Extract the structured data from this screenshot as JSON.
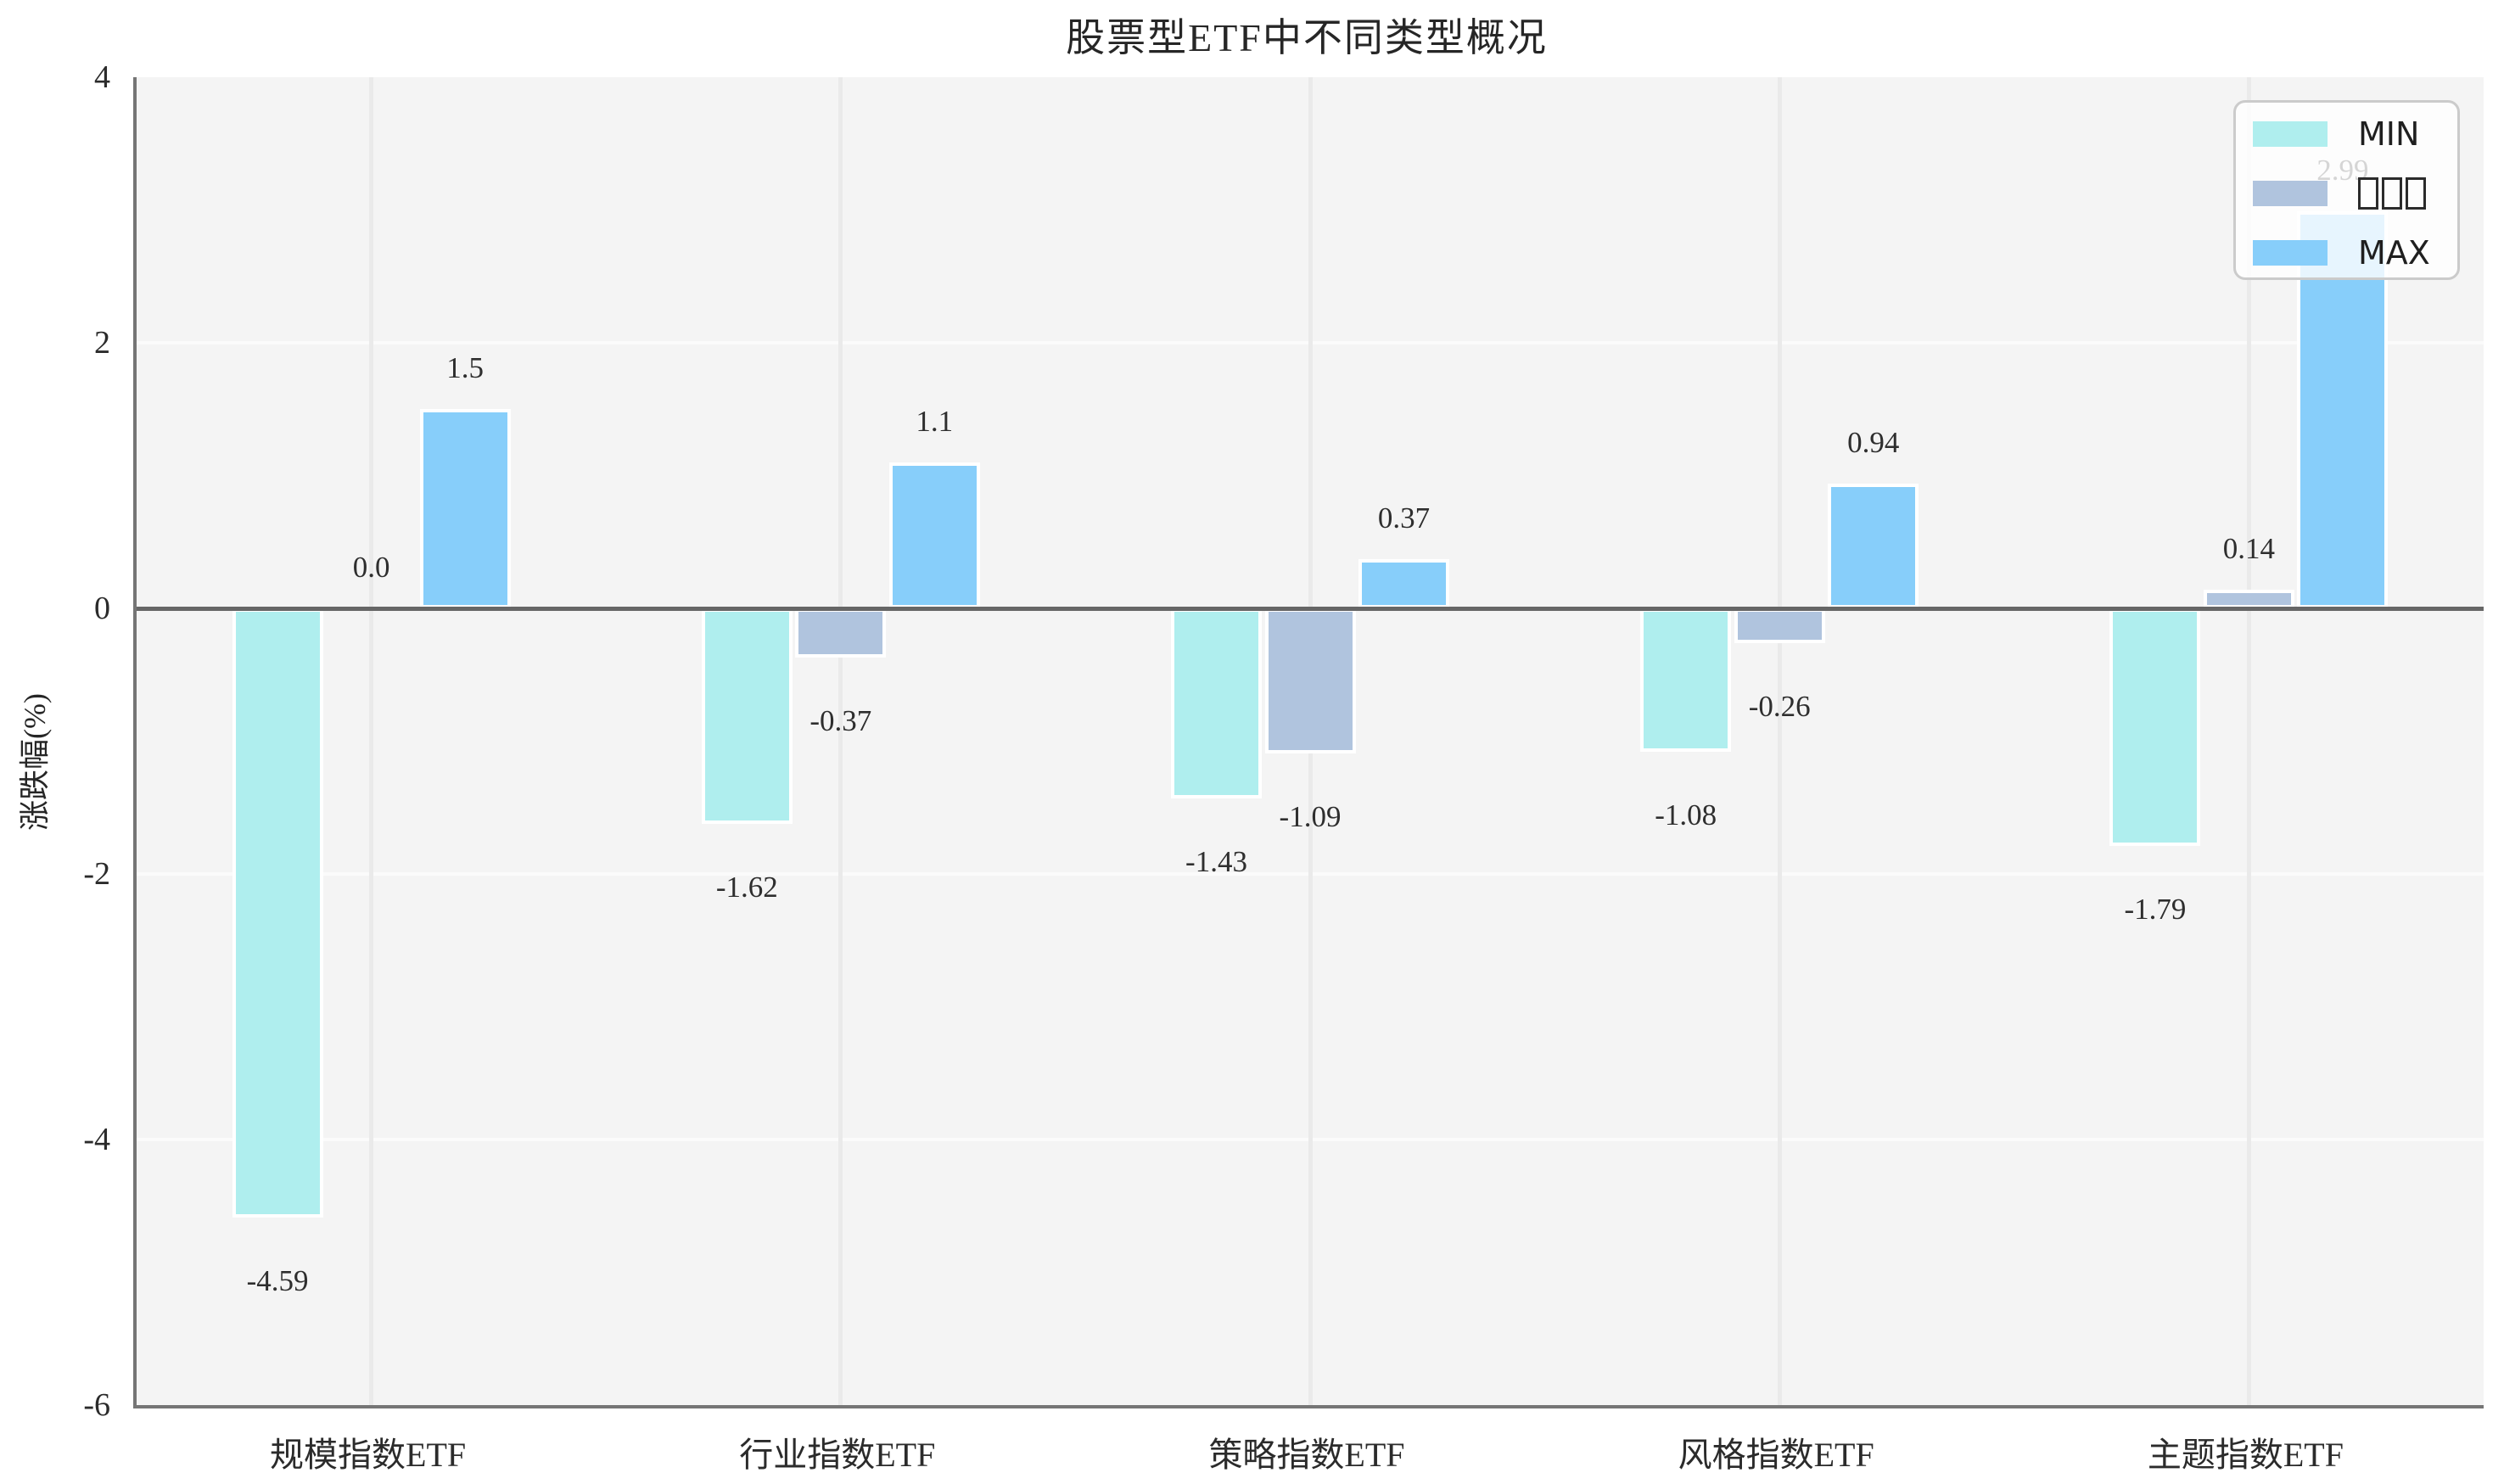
{
  "chart_data": {
    "type": "bar",
    "title": "股票型ETF中不同类型概况",
    "xlabel": "",
    "ylabel": "涨跌幅(%)",
    "ylim": [
      -6,
      4
    ],
    "yticks": [
      "4",
      "2",
      "0",
      "-2",
      "-4",
      "-6"
    ],
    "ytick_values": [
      4,
      2,
      0,
      -2,
      -4,
      -6
    ],
    "gridline_values": [
      2,
      -2,
      -4
    ],
    "grid": true,
    "categories": [
      "规模指数ETF",
      "行业指数ETF",
      "策略指数ETF",
      "风格指数ETF",
      "主题指数ETF"
    ],
    "series": [
      {
        "name": "MIN",
        "color": "#AFEEEE",
        "values": [
          -4.59,
          -1.62,
          -1.43,
          -1.08,
          -1.79
        ],
        "labels": [
          "-4.59",
          "-1.62",
          "-1.43",
          "-1.08",
          "-1.79"
        ]
      },
      {
        "name": "□□□",
        "color": "#B0C4DE",
        "values": [
          0.0,
          -0.37,
          -1.09,
          -0.26,
          0.14
        ],
        "labels": [
          "0.0",
          "-0.37",
          "-1.09",
          "-0.26",
          "0.14"
        ]
      },
      {
        "name": "MAX",
        "color": "#87CEFA",
        "values": [
          1.5,
          1.1,
          0.37,
          0.94,
          2.99
        ],
        "labels": [
          "1.5",
          "1.1",
          "0.37",
          "0.94",
          "2.99"
        ]
      }
    ],
    "legend": {
      "position": "upper right",
      "labels": [
        "MIN",
        "□□□",
        "MAX"
      ]
    }
  }
}
